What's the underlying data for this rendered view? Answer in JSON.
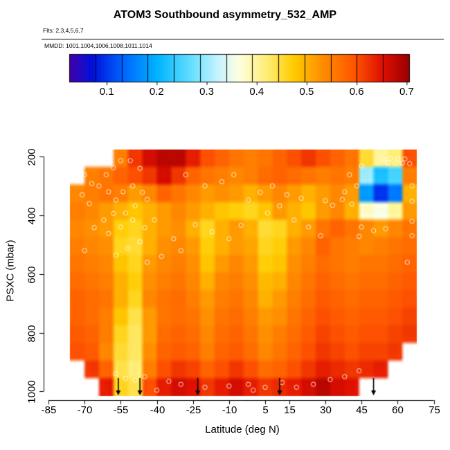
{
  "title": "ATOM3 Southbound asymmetry_532_AMP",
  "flights_label": "Flts: 2,3,4,5,6,7",
  "mmdd_label": "MMDD: 1001,1004,1006,1008,1011,1014",
  "chart_data": {
    "type": "heatmap",
    "title": "ATOM3 Southbound asymmetry_532_AMP",
    "xlabel": "Latitude (deg N)",
    "ylabel": "PSXC (mbar)",
    "x_ticks": [
      -85,
      -70,
      -55,
      -40,
      -25,
      -10,
      5,
      15,
      30,
      45,
      60,
      75
    ],
    "y_ticks": [
      200,
      400,
      600,
      800,
      1000
    ],
    "xlim": [
      -87,
      78
    ],
    "ylim": [
      150,
      1030
    ],
    "y_axis_reversed": true,
    "colorbar": {
      "range": [
        0.025,
        0.705
      ],
      "ticks": [
        0.1,
        0.2,
        0.3,
        0.4,
        0.5,
        0.6,
        0.7
      ],
      "blocks": 13,
      "stops": [
        {
          "t": 0.0,
          "color": "#4400a8"
        },
        {
          "t": 0.07,
          "color": "#0011dd"
        },
        {
          "t": 0.16,
          "color": "#0066ff"
        },
        {
          "t": 0.26,
          "color": "#00b4ff"
        },
        {
          "t": 0.36,
          "color": "#66e0ff"
        },
        {
          "t": 0.44,
          "color": "#c8f4ff"
        },
        {
          "t": 0.5,
          "color": "#ffffe0"
        },
        {
          "t": 0.58,
          "color": "#ffee77"
        },
        {
          "t": 0.66,
          "color": "#ffcc00"
        },
        {
          "t": 0.74,
          "color": "#ff9100"
        },
        {
          "t": 0.84,
          "color": "#ff5500"
        },
        {
          "t": 0.92,
          "color": "#e01000"
        },
        {
          "t": 1.0,
          "color": "#990000"
        }
      ]
    },
    "grid": {
      "lat_centers": [
        -73,
        -67,
        -61,
        -55,
        -49,
        -43,
        -37,
        -31,
        -25,
        -19,
        -13,
        -7,
        -1,
        5,
        11,
        17,
        23,
        29,
        35,
        41,
        47,
        53,
        59,
        65
      ],
      "p_centers": [
        205,
        265,
        325,
        385,
        445,
        505,
        565,
        625,
        685,
        745,
        805,
        865,
        925,
        985
      ],
      "cell": {
        "dlat": 6,
        "dp": 60
      },
      "values": [
        [
          null,
          null,
          null,
          0.55,
          0.62,
          0.66,
          0.68,
          0.68,
          0.64,
          0.6,
          0.58,
          0.56,
          0.55,
          0.56,
          0.58,
          0.6,
          0.62,
          0.6,
          0.58,
          0.56,
          0.45,
          0.4,
          0.42,
          0.6
        ],
        [
          null,
          0.55,
          0.56,
          0.58,
          0.6,
          0.62,
          0.66,
          0.62,
          0.58,
          0.56,
          0.55,
          0.54,
          0.55,
          0.57,
          0.58,
          0.57,
          0.56,
          0.55,
          0.56,
          0.55,
          0.3,
          0.22,
          0.25,
          0.55
        ],
        [
          0.54,
          0.55,
          0.56,
          0.55,
          0.52,
          0.54,
          0.58,
          0.56,
          0.54,
          0.52,
          0.53,
          0.52,
          0.5,
          0.52,
          0.54,
          0.52,
          0.5,
          0.52,
          0.54,
          0.52,
          0.18,
          0.1,
          0.15,
          0.5
        ],
        [
          0.55,
          0.54,
          0.52,
          0.5,
          0.48,
          0.5,
          0.52,
          0.54,
          0.52,
          0.5,
          0.48,
          0.47,
          0.46,
          0.48,
          0.52,
          0.5,
          0.48,
          0.52,
          0.54,
          0.5,
          0.38,
          0.36,
          0.4,
          0.52
        ],
        [
          0.54,
          0.53,
          0.52,
          0.47,
          0.46,
          0.5,
          0.52,
          0.53,
          0.5,
          0.46,
          0.5,
          0.52,
          0.5,
          0.45,
          0.46,
          0.5,
          0.52,
          0.56,
          0.58,
          0.56,
          0.54,
          0.52,
          0.54,
          0.56
        ],
        [
          0.55,
          0.54,
          0.53,
          0.46,
          0.45,
          0.5,
          0.53,
          0.54,
          0.52,
          0.47,
          0.5,
          0.52,
          0.51,
          0.46,
          0.47,
          0.52,
          0.54,
          0.58,
          0.56,
          0.55,
          0.54,
          0.55,
          0.56,
          0.57
        ],
        [
          0.56,
          0.55,
          0.54,
          0.48,
          0.46,
          0.52,
          0.54,
          0.55,
          0.53,
          0.48,
          0.52,
          0.54,
          0.52,
          0.47,
          0.48,
          0.53,
          0.55,
          0.57,
          0.56,
          0.55,
          0.56,
          0.56,
          0.57,
          0.58
        ],
        [
          0.57,
          0.56,
          0.55,
          0.5,
          0.47,
          0.53,
          0.55,
          0.56,
          0.54,
          0.5,
          0.54,
          0.55,
          0.53,
          0.49,
          0.5,
          0.54,
          0.56,
          0.58,
          0.57,
          0.56,
          0.57,
          0.57,
          0.58,
          0.59
        ],
        [
          0.58,
          0.57,
          0.56,
          0.5,
          0.46,
          0.54,
          0.56,
          0.57,
          0.55,
          0.52,
          0.55,
          0.56,
          0.54,
          0.5,
          0.52,
          0.55,
          0.57,
          0.59,
          0.58,
          0.57,
          0.58,
          0.58,
          0.59,
          0.6
        ],
        [
          0.58,
          0.57,
          0.55,
          0.48,
          0.44,
          0.52,
          0.56,
          0.57,
          0.56,
          0.53,
          0.56,
          0.57,
          0.55,
          0.52,
          0.53,
          0.56,
          0.58,
          0.6,
          0.59,
          0.58,
          0.59,
          0.59,
          0.6,
          0.61
        ],
        [
          0.59,
          0.58,
          0.55,
          0.46,
          0.43,
          0.52,
          0.57,
          0.58,
          0.57,
          0.54,
          0.57,
          0.58,
          0.56,
          0.53,
          0.55,
          0.57,
          0.59,
          0.61,
          0.6,
          0.59,
          0.6,
          0.6,
          0.61,
          0.62
        ],
        [
          0.6,
          0.59,
          0.54,
          0.45,
          0.43,
          0.53,
          0.58,
          0.59,
          0.58,
          0.55,
          0.58,
          0.59,
          0.57,
          0.54,
          0.56,
          0.58,
          0.6,
          0.62,
          0.61,
          0.6,
          0.61,
          0.61,
          0.62,
          null
        ],
        [
          null,
          0.62,
          0.58,
          0.44,
          0.42,
          0.55,
          0.6,
          0.62,
          0.61,
          0.58,
          0.6,
          0.62,
          0.6,
          0.57,
          0.58,
          0.6,
          0.62,
          0.64,
          0.63,
          0.62,
          0.63,
          0.64,
          null,
          null
        ],
        [
          null,
          null,
          0.64,
          0.46,
          0.44,
          0.6,
          0.64,
          0.66,
          0.65,
          0.62,
          0.64,
          0.66,
          0.64,
          0.62,
          0.63,
          0.64,
          0.66,
          0.68,
          0.66,
          0.65,
          null,
          null,
          null,
          null
        ]
      ]
    },
    "sample_points": [
      [
        -70,
        262
      ],
      [
        -67,
        292
      ],
      [
        -71,
        330
      ],
      [
        -68,
        360
      ],
      [
        -64,
        300
      ],
      [
        -61,
        262
      ],
      [
        -58,
        238
      ],
      [
        -55,
        214
      ],
      [
        -51,
        214
      ],
      [
        -47,
        240
      ],
      [
        -60,
        320
      ],
      [
        -57,
        348
      ],
      [
        -54,
        320
      ],
      [
        -50,
        300
      ],
      [
        -46,
        322
      ],
      [
        -44,
        346
      ],
      [
        -49,
        368
      ],
      [
        -53,
        392
      ],
      [
        -58,
        394
      ],
      [
        -62,
        416
      ],
      [
        -66,
        442
      ],
      [
        -60,
        462
      ],
      [
        -55,
        440
      ],
      [
        -50,
        416
      ],
      [
        -45,
        442
      ],
      [
        -41,
        416
      ],
      [
        -47,
        490
      ],
      [
        -52,
        512
      ],
      [
        -57,
        536
      ],
      [
        -44,
        560
      ],
      [
        -38,
        540
      ],
      [
        -70,
        520
      ],
      [
        -28,
        262
      ],
      [
        -20,
        300
      ],
      [
        -13,
        286
      ],
      [
        -8,
        262
      ],
      [
        -24,
        432
      ],
      [
        -17,
        456
      ],
      [
        -10,
        480
      ],
      [
        -5,
        434
      ],
      [
        -2,
        348
      ],
      [
        3,
        322
      ],
      [
        8,
        300
      ],
      [
        14,
        330
      ],
      [
        11,
        368
      ],
      [
        6,
        392
      ],
      [
        17,
        416
      ],
      [
        23,
        440
      ],
      [
        28,
        470
      ],
      [
        -33,
        480
      ],
      [
        -30,
        520
      ],
      [
        30,
        350
      ],
      [
        33,
        366
      ],
      [
        37,
        346
      ],
      [
        41,
        362
      ],
      [
        45,
        440
      ],
      [
        50,
        452
      ],
      [
        55,
        446
      ],
      [
        44,
        472
      ],
      [
        20,
        342
      ],
      [
        38,
        320
      ],
      [
        43,
        300
      ],
      [
        40,
        262
      ],
      [
        45,
        232
      ],
      [
        54,
        207
      ],
      [
        57,
        206
      ],
      [
        60,
        207
      ],
      [
        63,
        208
      ],
      [
        56,
        222
      ],
      [
        59,
        224
      ],
      [
        62,
        222
      ],
      [
        65,
        224
      ],
      [
        66,
        300
      ],
      [
        66,
        352
      ],
      [
        66,
        420
      ],
      [
        66,
        470
      ],
      [
        64,
        560
      ],
      [
        -57,
        940
      ],
      [
        -53,
        956
      ],
      [
        -49,
        962
      ],
      [
        -45,
        950
      ],
      [
        -40,
        996
      ],
      [
        -35,
        966
      ],
      [
        -30,
        976
      ],
      [
        -20,
        986
      ],
      [
        -10,
        982
      ],
      [
        -2,
        976
      ],
      [
        0,
        996
      ],
      [
        5,
        986
      ],
      [
        12,
        970
      ],
      [
        18,
        986
      ],
      [
        25,
        976
      ],
      [
        32,
        960
      ],
      [
        38,
        950
      ],
      [
        44,
        930
      ]
    ],
    "arrows_lat": [
      -56,
      -47,
      -23,
      11,
      50
    ]
  }
}
